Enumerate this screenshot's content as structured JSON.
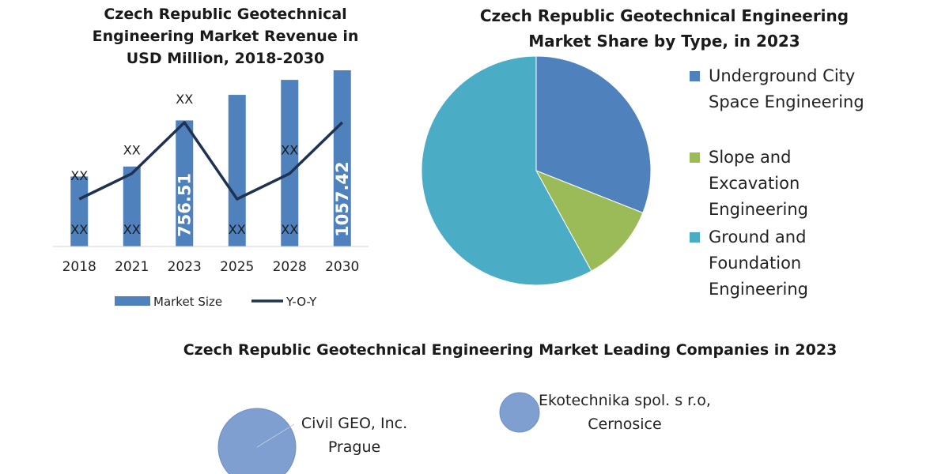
{
  "chart_data": [
    {
      "type": "bar",
      "title": "Czech Republic Geotechnical Engineering Market Revenue in USD Million, 2018-2030",
      "categories": [
        "2018",
        "2021",
        "2023",
        "2025",
        "2028",
        "2030"
      ],
      "series": [
        {
          "name": "Market Size",
          "color": "#4f81bd",
          "values": [
            420,
            480,
            756.51,
            910,
            1000,
            1057.42
          ],
          "labels": [
            "XX",
            "XX",
            "756.51",
            "XX",
            "XX",
            "1057.42"
          ]
        },
        {
          "name": "Y-O-Y",
          "type": "line",
          "color": "#1f3251",
          "values": [
            0.95,
            1.15,
            1.55,
            0.95,
            1.15,
            1.55
          ],
          "labels": [
            "XX",
            "XX",
            "XX",
            "",
            "XX",
            ""
          ]
        }
      ],
      "ylim": [
        0,
        1100
      ],
      "grid": false,
      "legend": "bottom"
    },
    {
      "type": "pie",
      "title": "Czech Republic Geotechnical Engineering Market Share by Type, in 2023",
      "slices": [
        {
          "label": "Underground City Space Engineering",
          "value": 31,
          "color": "#4f81bd"
        },
        {
          "label": "Slope and Excavation Engineering",
          "value": 11,
          "color": "#9bbb59"
        },
        {
          "label": "Ground and Foundation Engineering",
          "value": 58,
          "color": "#4bacc6"
        }
      ],
      "legend": "right"
    },
    {
      "type": "bubble",
      "title": "Czech Republic Geotechnical Engineering Market Leading Companies in 2023",
      "color": "#7f9fd1",
      "points": [
        {
          "label": "Civil GEO, Inc. Prague",
          "x": 1,
          "y": 1,
          "size": 3
        },
        {
          "label": "Ekotechnika spol. s r.o, Cernosice",
          "x": 2,
          "y": 2,
          "size": 1
        }
      ]
    }
  ]
}
